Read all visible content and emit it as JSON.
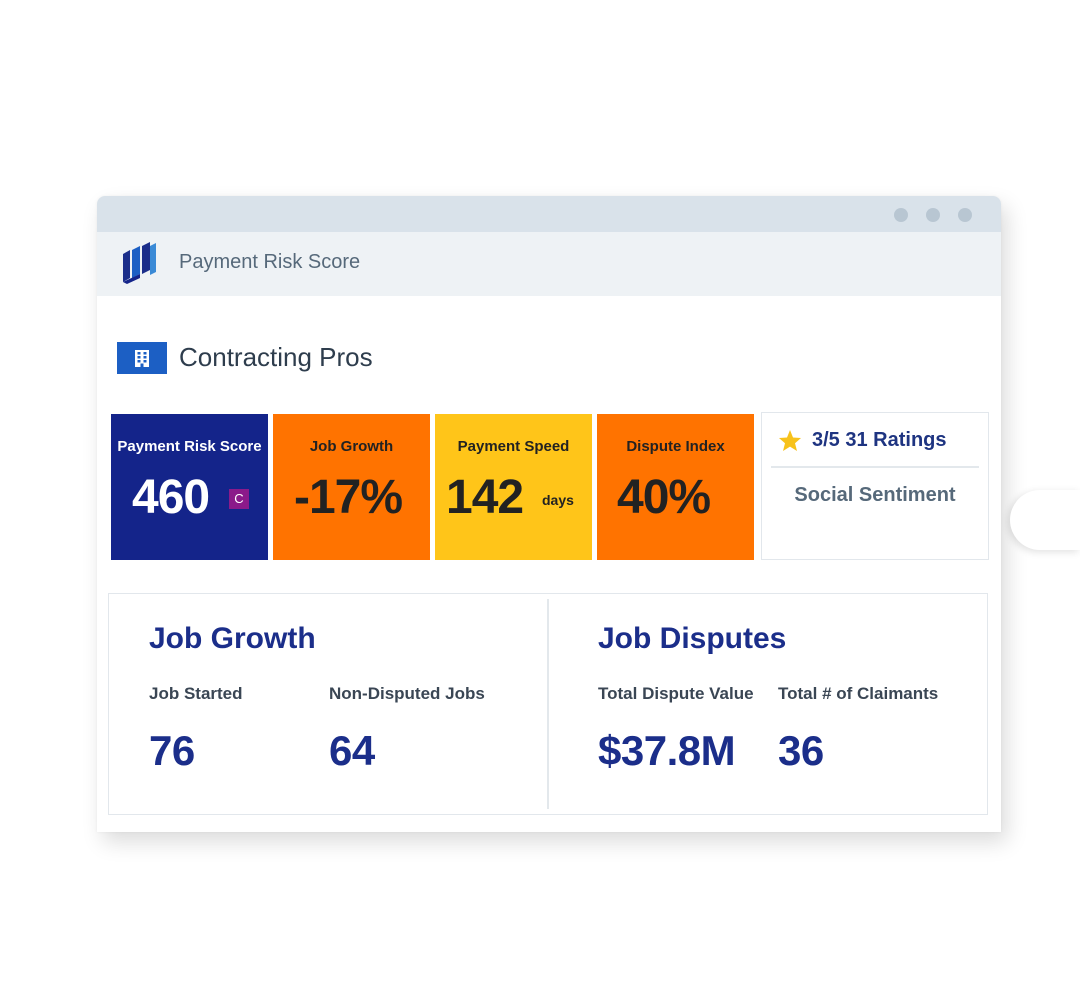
{
  "app": {
    "title": "Payment Risk Score"
  },
  "company": {
    "name": "Contracting Pros",
    "icon": "building-icon"
  },
  "tiles": [
    {
      "label": "Payment Risk Score",
      "value": "460",
      "grade": "C",
      "bg": "#14248a",
      "fg": "#ffffff"
    },
    {
      "label": "Job Growth",
      "value": "-17%",
      "bg": "#ff7300",
      "fg": "#222222"
    },
    {
      "label": "Payment Speed",
      "value": "142",
      "unit": "days",
      "bg": "#ffc519",
      "fg": "#222222"
    },
    {
      "label": "Dispute Index",
      "value": "40%",
      "bg": "#ff7300",
      "fg": "#222222"
    }
  ],
  "social": {
    "rating_text": "3/5 31  Ratings",
    "label": "Social Sentiment",
    "icon": "star-icon",
    "star_color": "#f7c21b"
  },
  "job_growth": {
    "title": "Job Growth",
    "metrics": [
      {
        "label": "Job Started",
        "value": "76"
      },
      {
        "label": "Non-Disputed Jobs",
        "value": "64"
      }
    ]
  },
  "job_disputes": {
    "title": "Job Disputes",
    "metrics": [
      {
        "label": "Total Dispute Value",
        "value": "$37.8M"
      },
      {
        "label": "Total # of Claimants",
        "value": "36"
      }
    ]
  },
  "colors": {
    "primary_navy": "#1b2e8a",
    "accent_blue": "#1c5fc4"
  }
}
